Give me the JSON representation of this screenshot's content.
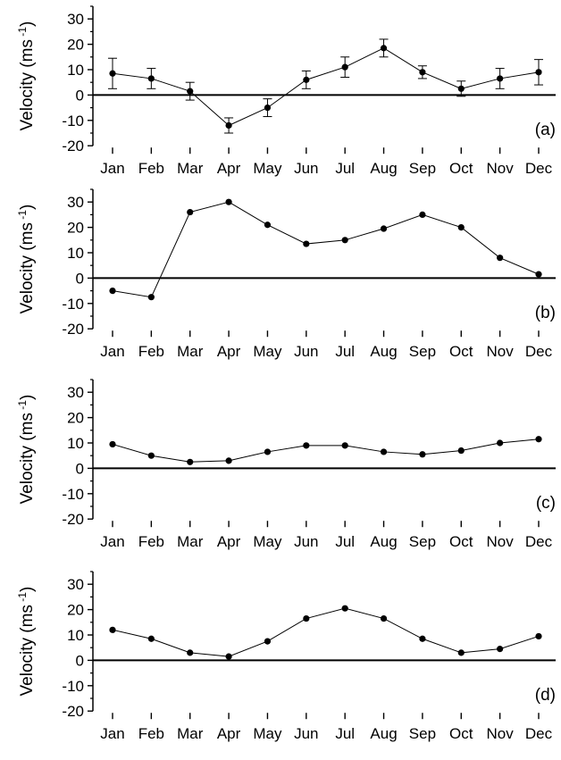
{
  "chart_data": [
    {
      "type": "line",
      "panel_label": "(a)",
      "ylabel": "Velocity (ms",
      "ylabel_sup": "-1",
      "ylabel_close": ")",
      "ylim": [
        -20,
        35
      ],
      "yticks": [
        -20,
        -10,
        0,
        10,
        20,
        30
      ],
      "zero_line": true,
      "categories": [
        "Jan",
        "Feb",
        "Mar",
        "Apr",
        "May",
        "Jun",
        "Jul",
        "Aug",
        "Sep",
        "Oct",
        "Nov",
        "Dec"
      ],
      "series": [
        {
          "values": [
            8.5,
            6.5,
            1.5,
            -12,
            -5,
            6,
            11,
            18.5,
            9,
            2.5,
            6.5,
            9
          ],
          "error": [
            6,
            4,
            3.5,
            3,
            3.5,
            3.5,
            4,
            3.5,
            2.5,
            3,
            4,
            5
          ]
        }
      ]
    },
    {
      "type": "line",
      "panel_label": "(b)",
      "ylabel": "Velocity (ms",
      "ylabel_sup": "-1",
      "ylabel_close": ")",
      "ylim": [
        -20,
        35
      ],
      "yticks": [
        -20,
        -10,
        0,
        10,
        20,
        30
      ],
      "zero_line": true,
      "categories": [
        "Jan",
        "Feb",
        "Mar",
        "Apr",
        "May",
        "Jun",
        "Jul",
        "Aug",
        "Sep",
        "Oct",
        "Nov",
        "Dec"
      ],
      "series": [
        {
          "values": [
            -5,
            -7.5,
            26,
            30,
            21,
            13.5,
            15,
            19.5,
            25,
            20,
            8,
            1.5
          ]
        }
      ]
    },
    {
      "type": "line",
      "panel_label": "(c)",
      "ylabel": "Velocity (ms",
      "ylabel_sup": "-1",
      "ylabel_close": ")",
      "ylim": [
        -20,
        35
      ],
      "yticks": [
        -20,
        -10,
        0,
        10,
        20,
        30
      ],
      "zero_line": true,
      "categories": [
        "Jan",
        "Feb",
        "Mar",
        "Apr",
        "May",
        "Jun",
        "Jul",
        "Aug",
        "Sep",
        "Oct",
        "Nov",
        "Dec"
      ],
      "series": [
        {
          "values": [
            9.5,
            5,
            2.5,
            3,
            6.5,
            9,
            9,
            6.5,
            5.5,
            7,
            10,
            11.5
          ]
        }
      ]
    },
    {
      "type": "line",
      "panel_label": "(d)",
      "ylabel": "Velocity (ms",
      "ylabel_sup": "-1",
      "ylabel_close": ")",
      "ylim": [
        -20,
        35
      ],
      "yticks": [
        -20,
        -10,
        0,
        10,
        20,
        30
      ],
      "zero_line": true,
      "categories": [
        "Jan",
        "Feb",
        "Mar",
        "Apr",
        "May",
        "Jun",
        "Jul",
        "Aug",
        "Sep",
        "Oct",
        "Nov",
        "Dec"
      ],
      "series": [
        {
          "values": [
            12,
            8.5,
            3,
            1.5,
            7.5,
            16.5,
            20.5,
            16.5,
            8.5,
            3,
            4.5,
            9.5
          ]
        }
      ]
    }
  ]
}
